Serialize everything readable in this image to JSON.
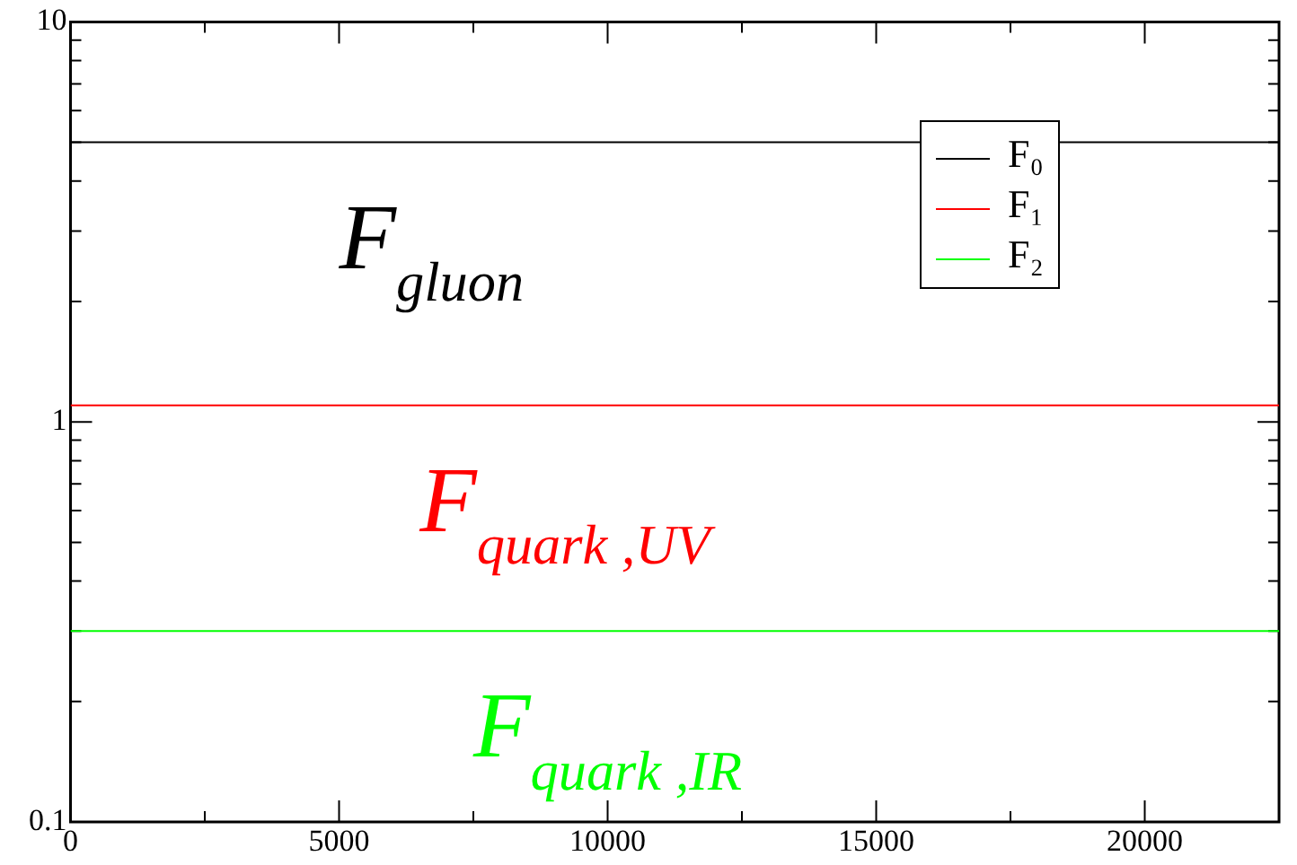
{
  "chart_data": {
    "type": "line",
    "log": "y",
    "x": [
      0,
      22500
    ],
    "series": [
      {
        "name": "F₀",
        "color": "#000000",
        "values": [
          5,
          5
        ]
      },
      {
        "name": "F₁",
        "color": "#ff0000",
        "values": [
          1.1,
          1.1
        ]
      },
      {
        "name": "F₂",
        "color": "#00ff00",
        "values": [
          0.3,
          0.3
        ]
      }
    ],
    "xlim": [
      0,
      22500
    ],
    "xticks": [
      0,
      {
        "value": 2500,
        "label": null
      },
      5000,
      {
        "value": 7500,
        "label": null
      },
      10000,
      {
        "value": 12500,
        "label": null
      },
      15000,
      {
        "value": 17500,
        "label": null
      },
      20000,
      {
        "value": 22500,
        "label": null
      }
    ],
    "ylim": [
      0.1,
      10
    ],
    "yticks": [
      0.1,
      {
        "value": 0.2,
        "label": null
      },
      {
        "value": 0.3,
        "label": null
      },
      {
        "value": 0.4,
        "label": null
      },
      {
        "value": 0.5,
        "label": null
      },
      {
        "value": 0.6,
        "label": null
      },
      {
        "value": 0.7,
        "label": null
      },
      {
        "value": 0.8,
        "label": null
      },
      {
        "value": 0.9,
        "label": null
      },
      1,
      {
        "value": 2,
        "label": null
      },
      {
        "value": 3,
        "label": null
      },
      {
        "value": 4,
        "label": null
      },
      {
        "value": 5,
        "label": null
      },
      {
        "value": 6,
        "label": null
      },
      {
        "value": 7,
        "label": null
      },
      {
        "value": 8,
        "label": null
      },
      {
        "value": 9,
        "label": null
      },
      10
    ],
    "grid": false,
    "legend": "top right",
    "marker": "none",
    "line_style": "solid",
    "annotations": [
      {
        "text": "F$_{gluon}$",
        "x": 5000,
        "y": 5
      },
      {
        "text": "F$_{quark ,UV}$",
        "x": 6500,
        "y": 1.1
      },
      {
        "text": "F$_{quark ,IR}$",
        "x": 7500,
        "y": 0.3
      }
    ]
  }
}
